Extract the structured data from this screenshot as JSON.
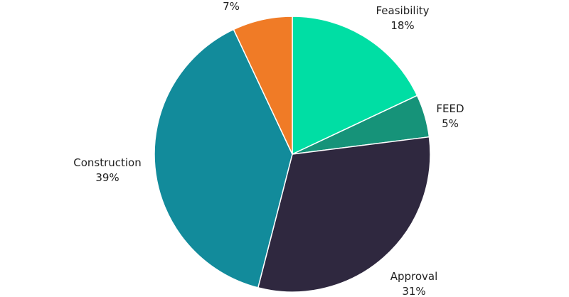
{
  "chart_data": {
    "type": "pie",
    "title": "",
    "slices": [
      {
        "name": "Feasibility",
        "value": 18,
        "label": "18%",
        "color": "#00DEA4"
      },
      {
        "name": "FEED",
        "value": 5,
        "label": "5%",
        "color": "#169379"
      },
      {
        "name": "Approval",
        "value": 31,
        "label": "31%",
        "color": "#2F283F"
      },
      {
        "name": "Construction",
        "value": 39,
        "label": "39%",
        "color": "#128B9B"
      },
      {
        "name": "",
        "value": 7,
        "label": "7%",
        "color": "#F07B26"
      }
    ],
    "start_angle_deg": 0,
    "direction": "clockwise",
    "legend": "none",
    "data_labels": "outside"
  }
}
